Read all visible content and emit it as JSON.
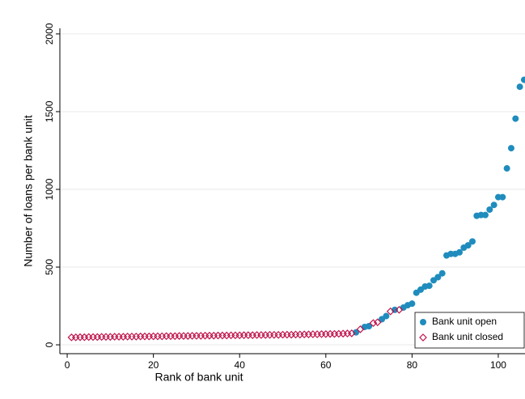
{
  "chart_data": {
    "type": "scatter",
    "xlabel": "Rank of bank unit",
    "ylabel": "Number of loans per bank unit",
    "xlim": [
      -1.7,
      106.2
    ],
    "ylim": [
      -57,
      2036
    ],
    "xticks": [
      0,
      20,
      40,
      60,
      80,
      100
    ],
    "yticks": [
      0,
      500,
      1000,
      1500,
      2000
    ],
    "grid": true,
    "legend": "lower right",
    "series": [
      {
        "name": "Bank unit open",
        "color": "#1f8cbd",
        "marker": "circle",
        "x": [
          67,
          69,
          70,
          73,
          74,
          76,
          78,
          79,
          80,
          81,
          82,
          83,
          84,
          85,
          86,
          87,
          88,
          89,
          90,
          91,
          92,
          93,
          94,
          95,
          96,
          97,
          98,
          99,
          100,
          101,
          102,
          103,
          104,
          105,
          106
        ],
        "values": [
          80,
          115,
          120,
          165,
          185,
          225,
          240,
          255,
          265,
          335,
          355,
          375,
          380,
          415,
          435,
          460,
          575,
          585,
          585,
          595,
          625,
          640,
          665,
          830,
          835,
          835,
          870,
          900,
          950,
          950,
          1135,
          1265,
          1455,
          1660,
          1705
        ]
      },
      {
        "name": "Bank unit closed",
        "color": "#c0134b",
        "marker": "diamond",
        "x": [
          1,
          2,
          3,
          4,
          5,
          6,
          7,
          8,
          9,
          10,
          11,
          12,
          13,
          14,
          15,
          16,
          17,
          18,
          19,
          20,
          21,
          22,
          23,
          24,
          25,
          26,
          27,
          28,
          29,
          30,
          31,
          32,
          33,
          34,
          35,
          36,
          37,
          38,
          39,
          40,
          41,
          42,
          43,
          44,
          45,
          46,
          47,
          48,
          49,
          50,
          51,
          52,
          53,
          54,
          55,
          56,
          57,
          58,
          59,
          60,
          61,
          62,
          63,
          64,
          65,
          66,
          68,
          71,
          72,
          75,
          77
        ],
        "values": [
          48,
          48,
          49,
          49,
          50,
          50,
          50,
          51,
          51,
          51,
          52,
          52,
          52,
          53,
          53,
          53,
          54,
          54,
          54,
          55,
          55,
          55,
          56,
          56,
          56,
          57,
          57,
          57,
          58,
          58,
          58,
          59,
          59,
          59,
          60,
          60,
          60,
          61,
          61,
          61,
          62,
          62,
          62,
          63,
          63,
          63,
          64,
          64,
          64,
          65,
          65,
          65,
          66,
          66,
          67,
          67,
          68,
          68,
          69,
          69,
          70,
          70,
          71,
          72,
          73,
          74,
          100,
          140,
          145,
          215,
          225
        ]
      }
    ]
  }
}
